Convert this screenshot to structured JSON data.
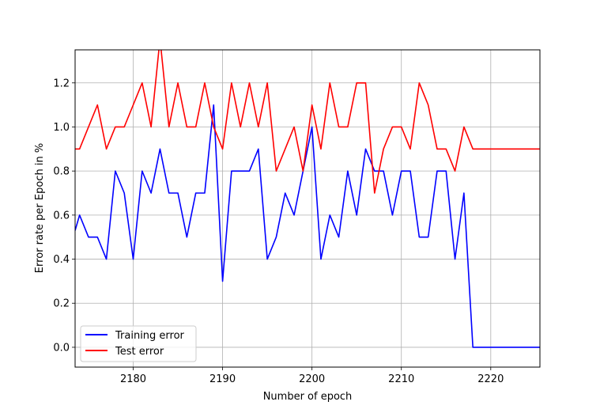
{
  "chart_data": {
    "type": "line",
    "xlabel": "Number of epoch",
    "ylabel": "Error rate per Epoch in %",
    "xlim": [
      2173.5,
      2225.5
    ],
    "ylim": [
      -0.09,
      1.35
    ],
    "xticks": [
      2180,
      2190,
      2200,
      2210,
      2220
    ],
    "yticks": [
      0.0,
      0.2,
      0.4,
      0.6,
      0.8,
      1.0,
      1.2
    ],
    "grid": true,
    "legend_position": "lower-left",
    "x": [
      2173.5,
      2174,
      2175,
      2176,
      2177,
      2178,
      2179,
      2180,
      2181,
      2182,
      2183,
      2184,
      2185,
      2186,
      2187,
      2188,
      2189,
      2190,
      2191,
      2192,
      2193,
      2194,
      2195,
      2196,
      2197,
      2198,
      2199,
      2200,
      2201,
      2202,
      2203,
      2204,
      2205,
      2206,
      2207,
      2208,
      2209,
      2210,
      2211,
      2212,
      2213,
      2214,
      2215,
      2216,
      2217,
      2218,
      2219,
      2220,
      2221,
      2222,
      2223,
      2224,
      2225,
      2225.5
    ],
    "series": [
      {
        "name": "Training error",
        "color": "#0000ff",
        "values": [
          0.53,
          0.6,
          0.5,
          0.5,
          0.4,
          0.8,
          0.7,
          0.4,
          0.8,
          0.7,
          0.9,
          0.7,
          0.7,
          0.5,
          0.7,
          0.7,
          1.1,
          0.3,
          0.8,
          0.8,
          0.8,
          0.9,
          0.4,
          0.5,
          0.7,
          0.6,
          0.8,
          1.0,
          0.4,
          0.6,
          0.5,
          0.8,
          0.6,
          0.9,
          0.8,
          0.8,
          0.6,
          0.8,
          0.8,
          0.5,
          0.5,
          0.8,
          0.8,
          0.4,
          0.7,
          0.0,
          0.0,
          0.0,
          0.0,
          0.0,
          0.0,
          0.0,
          0.0,
          0.0
        ]
      },
      {
        "name": "Test error",
        "color": "#ff0000",
        "values": [
          0.9,
          0.9,
          1.0,
          1.1,
          0.9,
          1.0,
          1.0,
          1.1,
          1.2,
          1.0,
          1.4,
          1.0,
          1.2,
          1.0,
          1.0,
          1.2,
          1.0,
          0.9,
          1.2,
          1.0,
          1.2,
          1.0,
          1.2,
          0.8,
          0.9,
          1.0,
          0.8,
          1.1,
          0.9,
          1.2,
          1.0,
          1.0,
          1.2,
          1.2,
          0.7,
          0.9,
          1.0,
          1.0,
          0.9,
          1.2,
          1.1,
          0.9,
          0.9,
          0.8,
          1.0,
          0.9,
          0.9,
          0.9,
          0.9,
          0.9,
          0.9,
          0.9,
          0.9,
          0.9
        ]
      }
    ]
  }
}
